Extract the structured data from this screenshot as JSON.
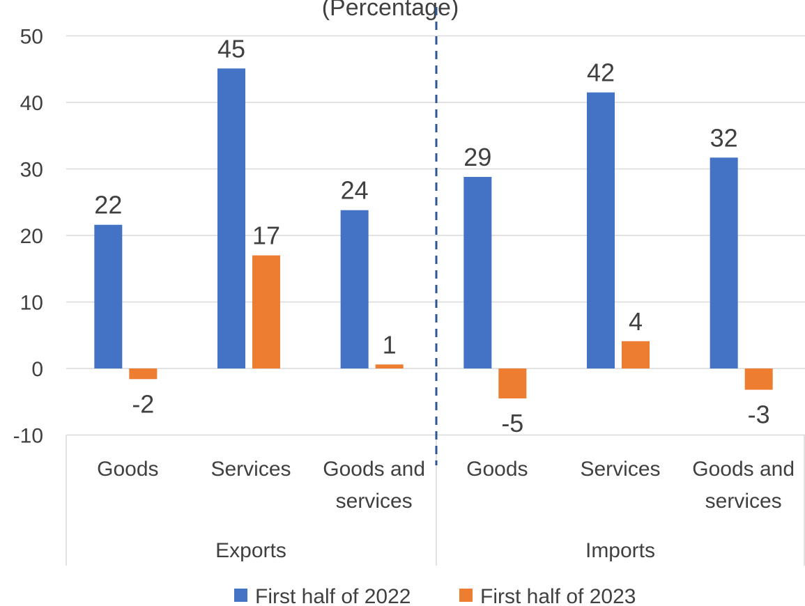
{
  "chart_data": {
    "type": "bar",
    "title": "",
    "title_fragment": "(Percentage)",
    "xlabel": "",
    "ylabel": "",
    "ylim": [
      -10,
      50
    ],
    "yticks": [
      -10,
      0,
      10,
      20,
      30,
      40,
      50
    ],
    "grid": true,
    "legend_position": "bottom",
    "groups": [
      {
        "label": "Exports",
        "categories": [
          "Goods",
          "Services",
          "Goods and services"
        ]
      },
      {
        "label": "Imports",
        "categories": [
          "Goods",
          "Services",
          "Goods and services"
        ]
      }
    ],
    "categories": [
      "Goods",
      "Services",
      "Goods and services",
      "Goods",
      "Services",
      "Goods and services"
    ],
    "series": [
      {
        "name": "First half of 2022",
        "color": "#4472C4",
        "values": [
          21.6,
          45.1,
          23.8,
          28.8,
          41.5,
          31.7
        ],
        "labels": [
          "22",
          "45",
          "24",
          "29",
          "42",
          "32"
        ]
      },
      {
        "name": "First half of 2023",
        "color": "#ED7D31",
        "values": [
          -1.6,
          17.0,
          0.6,
          -4.5,
          4.1,
          -3.2
        ],
        "labels": [
          "-2",
          "17",
          "1",
          "-5",
          "4",
          "-3"
        ]
      }
    ],
    "separator": "dashed line between Exports and Imports"
  }
}
